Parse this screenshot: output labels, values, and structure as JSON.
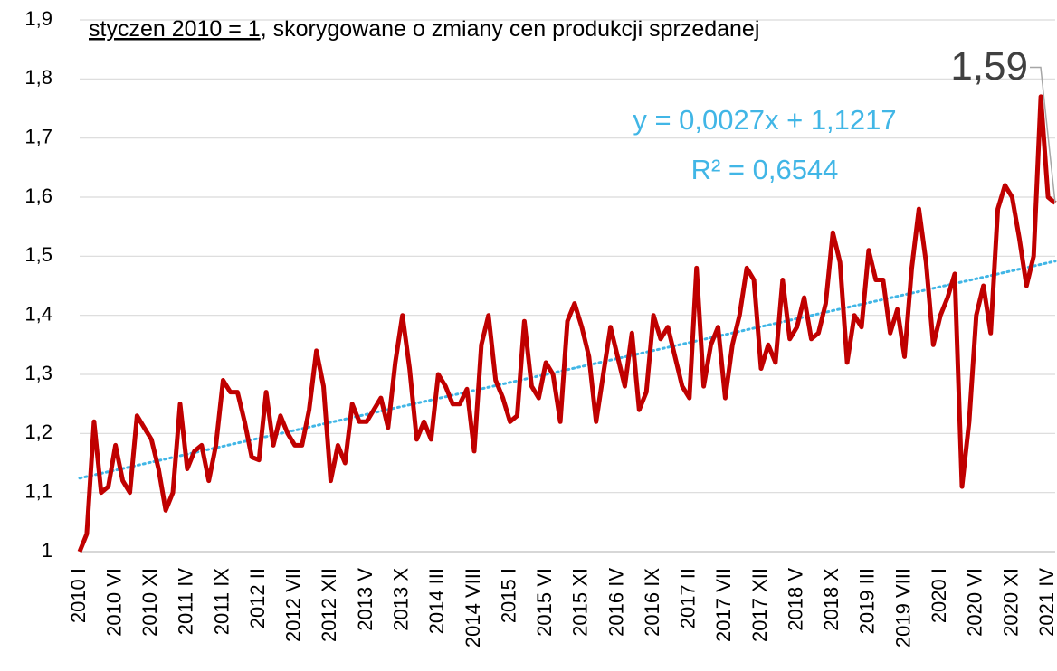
{
  "chart_data": {
    "type": "line",
    "title": [
      "styczen 2010 = 1",
      ", skorygowane o zmiany cen produkcji sprzedanej"
    ],
    "categories": [
      "2010 I",
      null,
      null,
      null,
      null,
      "2010 VI",
      null,
      null,
      null,
      null,
      "2010 XI",
      null,
      null,
      null,
      null,
      "2011 IV",
      null,
      null,
      null,
      null,
      "2011 IX",
      null,
      null,
      null,
      null,
      "2012 II",
      null,
      null,
      null,
      null,
      "2012 VII",
      null,
      null,
      null,
      null,
      "2012 XII",
      null,
      null,
      null,
      null,
      "2013 V",
      null,
      null,
      null,
      null,
      "2013 X",
      null,
      null,
      null,
      null,
      "2014 III",
      null,
      null,
      null,
      null,
      "2014 VIII",
      null,
      null,
      null,
      null,
      "2015 I",
      null,
      null,
      null,
      null,
      "2015 VI",
      null,
      null,
      null,
      null,
      "2015 XI",
      null,
      null,
      null,
      null,
      "2016 IV",
      null,
      null,
      null,
      null,
      "2016 IX",
      null,
      null,
      null,
      null,
      "2017 II",
      null,
      null,
      null,
      null,
      "2017 VII",
      null,
      null,
      null,
      null,
      "2017 XII",
      null,
      null,
      null,
      null,
      "2018 V",
      null,
      null,
      null,
      null,
      "2018 X",
      null,
      null,
      null,
      null,
      "2019 III",
      null,
      null,
      null,
      null,
      "2019 VIII",
      null,
      null,
      null,
      null,
      "2020 I",
      null,
      null,
      null,
      null,
      "2020 VI",
      null,
      null,
      null,
      null,
      "2020 XI",
      null,
      null,
      null,
      null,
      "2021 IV",
      null
    ],
    "series": [
      {
        "color": "#c00000",
        "values": [
          1.0,
          1.03,
          1.22,
          1.1,
          1.11,
          1.18,
          1.12,
          1.1,
          1.23,
          1.21,
          1.19,
          1.14,
          1.07,
          1.1,
          1.25,
          1.14,
          1.17,
          1.18,
          1.12,
          1.18,
          1.29,
          1.27,
          1.27,
          1.22,
          1.16,
          1.155,
          1.27,
          1.18,
          1.23,
          1.2,
          1.18,
          1.18,
          1.24,
          1.34,
          1.28,
          1.12,
          1.18,
          1.15,
          1.25,
          1.22,
          1.22,
          1.24,
          1.26,
          1.21,
          1.32,
          1.4,
          1.31,
          1.19,
          1.22,
          1.19,
          1.3,
          1.28,
          1.25,
          1.25,
          1.275,
          1.17,
          1.35,
          1.4,
          1.29,
          1.26,
          1.22,
          1.23,
          1.39,
          1.28,
          1.26,
          1.32,
          1.3,
          1.22,
          1.39,
          1.42,
          1.38,
          1.33,
          1.22,
          1.3,
          1.38,
          1.33,
          1.28,
          1.37,
          1.24,
          1.27,
          1.4,
          1.36,
          1.38,
          1.33,
          1.28,
          1.26,
          1.48,
          1.28,
          1.35,
          1.38,
          1.26,
          1.35,
          1.4,
          1.48,
          1.46,
          1.31,
          1.35,
          1.32,
          1.46,
          1.36,
          1.38,
          1.43,
          1.36,
          1.37,
          1.42,
          1.54,
          1.49,
          1.32,
          1.4,
          1.38,
          1.51,
          1.46,
          1.46,
          1.37,
          1.41,
          1.33,
          1.48,
          1.58,
          1.49,
          1.35,
          1.4,
          1.43,
          1.47,
          1.11,
          1.22,
          1.4,
          1.45,
          1.37,
          1.58,
          1.62,
          1.6,
          1.53,
          1.45,
          1.5,
          1.77,
          1.6,
          1.59
        ],
        "value_labels": [
          null,
          null,
          null,
          null,
          null,
          null,
          null,
          null,
          null,
          null,
          null,
          null,
          null,
          null,
          null,
          null,
          null,
          null,
          null,
          null,
          null,
          null,
          null,
          null,
          null,
          null,
          null,
          null,
          null,
          null,
          null,
          null,
          null,
          null,
          null,
          null,
          null,
          null,
          null,
          null,
          null,
          null,
          null,
          null,
          null,
          null,
          null,
          null,
          null,
          null,
          null,
          null,
          null,
          null,
          null,
          null,
          null,
          null,
          null,
          null,
          null,
          null,
          null,
          null,
          null,
          null,
          null,
          null,
          null,
          null,
          null,
          null,
          null,
          null,
          null,
          null,
          null,
          null,
          null,
          null,
          null,
          null,
          null,
          null,
          null,
          null,
          null,
          null,
          null,
          null,
          null,
          null,
          null,
          null,
          null,
          null,
          null,
          null,
          null,
          null,
          null,
          null,
          null,
          null,
          null,
          null,
          null,
          null,
          null,
          null,
          null,
          null,
          null,
          null,
          null,
          null,
          null,
          null,
          null,
          null,
          null,
          null,
          null,
          null,
          null,
          null,
          null,
          null,
          null,
          null,
          null,
          null,
          null,
          null,
          null,
          null,
          "1,59"
        ]
      }
    ],
    "trendline": {
      "slope": 0.0027,
      "intercept": 1.1217,
      "color": "#41b6e6",
      "equation": "y = 0,0027x + 1,1217",
      "r2": "R² = 0,6544"
    },
    "ylim": [
      1,
      1.9
    ],
    "yticks": [
      1,
      {
        "value": 1.1,
        "label": "1,1"
      },
      {
        "value": 1.2,
        "label": "1,2"
      },
      {
        "value": 1.3,
        "label": "1,3"
      },
      {
        "value": 1.4,
        "label": "1,4"
      },
      {
        "value": 1.5,
        "label": "1,5"
      },
      {
        "value": 1.6,
        "label": "1,6"
      },
      {
        "value": 1.7,
        "label": "1,7"
      },
      {
        "value": 1.8,
        "label": "1,8"
      },
      {
        "value": 1.9,
        "label": "1,9"
      }
    ],
    "grid": true
  }
}
